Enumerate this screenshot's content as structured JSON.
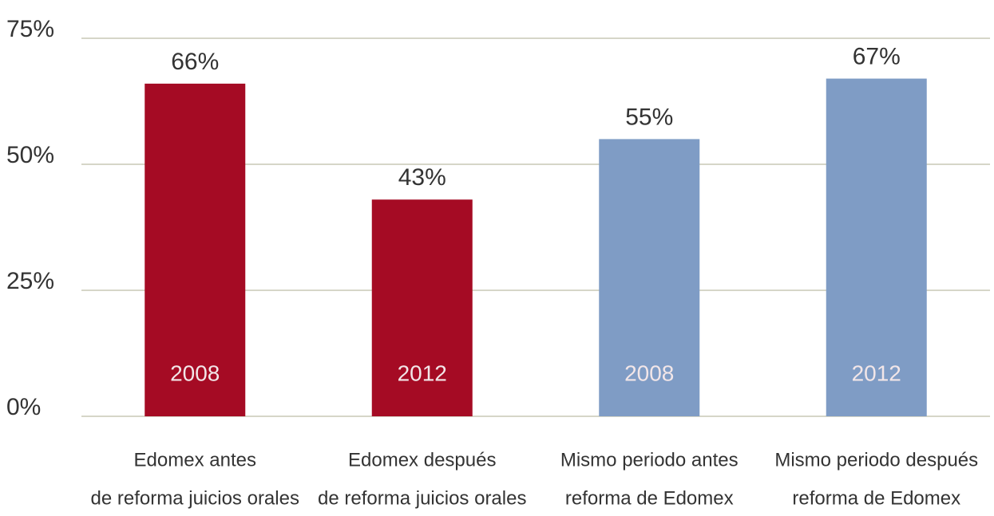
{
  "chart_data": {
    "type": "bar",
    "categories": [
      [
        "Edomex antes",
        "de reforma juicios orales"
      ],
      [
        "Edomex después",
        "de reforma juicios orales"
      ],
      [
        "Mismo periodo antes",
        "reforma de Edomex"
      ],
      [
        "Mismo periodo después",
        "reforma de Edomex"
      ]
    ],
    "values": [
      66,
      43,
      55,
      67
    ],
    "value_labels": [
      "66%",
      "43%",
      "55%",
      "67%"
    ],
    "bar_labels": [
      "2008",
      "2012",
      "2008",
      "2012"
    ],
    "colors": [
      "#a50b24",
      "#a50b24",
      "#7f9cc5",
      "#7f9cc5"
    ],
    "ylim": [
      0,
      75
    ],
    "yticks": [
      {
        "value": 0,
        "label": "0%"
      },
      {
        "value": 25,
        "label": "25%"
      },
      {
        "value": 50,
        "label": "50%"
      },
      {
        "value": 75,
        "label": "75%"
      }
    ],
    "grid": true
  }
}
